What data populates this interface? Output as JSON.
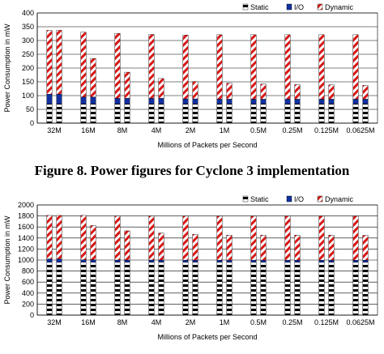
{
  "caption": "Figure 8. Power figures for Cyclone 3 implementation",
  "colors": {
    "static": "#000000",
    "io": "#1030a0",
    "dynamic": "#d81818",
    "grid": "#000000"
  },
  "chart_data": [
    {
      "type": "bar",
      "stacked": true,
      "categories": [
        "32M",
        "16M",
        "8M",
        "4M",
        "2M",
        "1M",
        "0.5M",
        "0.25M",
        "0.125M",
        "0.0625M"
      ],
      "xlabel": "Millions of Packets per Second",
      "ylabel": "Power Consumption in mW",
      "ylim": [
        0,
        400
      ],
      "yticks": [
        "0",
        "50",
        "100",
        "150",
        "200",
        "250",
        "300",
        "350",
        "400"
      ],
      "legend": {
        "position": "top-right",
        "entries": [
          "Static",
          "I/O",
          "Dynamic"
        ]
      },
      "bars_per_category": 2,
      "series": [
        {
          "name": "Static",
          "values": [
            [
              70,
              70
            ],
            [
              70,
              70
            ],
            [
              70,
              70
            ],
            [
              70,
              70
            ],
            [
              70,
              70
            ],
            [
              70,
              70
            ],
            [
              70,
              70
            ],
            [
              70,
              70
            ],
            [
              70,
              70
            ],
            [
              70,
              70
            ]
          ]
        },
        {
          "name": "I/O",
          "values": [
            [
              35,
              35
            ],
            [
              25,
              25
            ],
            [
              20,
              20
            ],
            [
              20,
              20
            ],
            [
              18,
              18
            ],
            [
              17,
              17
            ],
            [
              17,
              17
            ],
            [
              17,
              17
            ],
            [
              17,
              17
            ],
            [
              17,
              17
            ]
          ]
        },
        {
          "name": "Dynamic",
          "values": [
            [
              232,
              232
            ],
            [
              235,
              140
            ],
            [
              236,
              95
            ],
            [
              232,
              72
            ],
            [
              232,
              63
            ],
            [
              234,
              58
            ],
            [
              234,
              55
            ],
            [
              234,
              53
            ],
            [
              234,
              52
            ],
            [
              234,
              50
            ]
          ]
        }
      ]
    },
    {
      "type": "bar",
      "stacked": true,
      "categories": [
        "32M",
        "16M",
        "8M",
        "4M",
        "2M",
        "1M",
        "0.5M",
        "0.25M",
        "0.125M",
        "0.0625M"
      ],
      "xlabel": "Millions of Packets per Second",
      "ylabel": "Power Consumption in mW",
      "ylim": [
        0,
        2000
      ],
      "yticks": [
        "0",
        "200",
        "400",
        "600",
        "800",
        "1000",
        "1200",
        "1400",
        "1600",
        "1800",
        "2000"
      ],
      "legend": {
        "position": "top-right",
        "entries": [
          "Static",
          "I/O",
          "Dynamic"
        ]
      },
      "bars_per_category": 2,
      "series": [
        {
          "name": "Static",
          "values": [
            [
              960,
              960
            ],
            [
              960,
              960
            ],
            [
              960,
              960
            ],
            [
              960,
              960
            ],
            [
              960,
              960
            ],
            [
              960,
              960
            ],
            [
              960,
              960
            ],
            [
              960,
              960
            ],
            [
              960,
              960
            ],
            [
              960,
              960
            ]
          ]
        },
        {
          "name": "I/O",
          "values": [
            [
              60,
              60
            ],
            [
              45,
              45
            ],
            [
              40,
              40
            ],
            [
              40,
              40
            ],
            [
              38,
              38
            ],
            [
              38,
              38
            ],
            [
              38,
              38
            ],
            [
              38,
              38
            ],
            [
              38,
              38
            ],
            [
              38,
              38
            ]
          ]
        },
        {
          "name": "Dynamic",
          "values": [
            [
              790,
              790
            ],
            [
              805,
              620
            ],
            [
              800,
              530
            ],
            [
              800,
              490
            ],
            [
              800,
              470
            ],
            [
              800,
              455
            ],
            [
              800,
              455
            ],
            [
              800,
              455
            ],
            [
              800,
              455
            ],
            [
              800,
              450
            ]
          ]
        }
      ]
    }
  ]
}
